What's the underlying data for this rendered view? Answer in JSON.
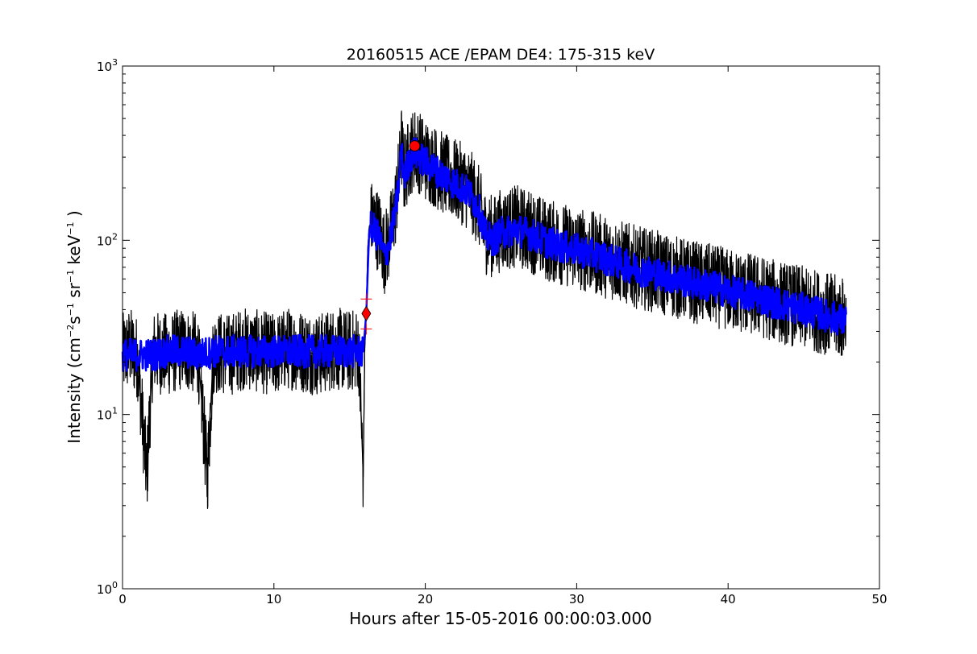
{
  "chart_data": {
    "type": "line",
    "title": "20160515 ACE /EPAM DE4: 175-315 keV",
    "xlabel": "Hours after 15-05-2016 00:00:03.000",
    "ylabel": {
      "prefix": "Intensity (cm",
      "exp1": "−2",
      "mid1": "s",
      "exp2": "−1",
      "mid2": " sr",
      "exp3": "−1",
      "mid3": " keV",
      "exp4": "−1",
      "suffix": " )"
    },
    "xlim": [
      0,
      50
    ],
    "ylim": [
      1,
      1000
    ],
    "yscale": "log",
    "grid": false,
    "xticks": [
      {
        "value": 0,
        "label": "0"
      },
      {
        "value": 10,
        "label": "10"
      },
      {
        "value": 20,
        "label": "20"
      },
      {
        "value": 30,
        "label": "30"
      },
      {
        "value": 40,
        "label": "40"
      },
      {
        "value": 50,
        "label": "50"
      }
    ],
    "yticks": [
      {
        "value": 1,
        "base": "10",
        "exp": "0"
      },
      {
        "value": 10,
        "base": "10",
        "exp": "1"
      },
      {
        "value": 100,
        "base": "10",
        "exp": "2"
      },
      {
        "value": 1000,
        "base": "10",
        "exp": "3"
      }
    ],
    "series": [
      {
        "color": "#000000",
        "points": [
          [
            0.0,
            22
          ],
          [
            0.5,
            24
          ],
          [
            1.0,
            21
          ],
          [
            1.6,
            4.4
          ],
          [
            2.0,
            23
          ],
          [
            3.0,
            22
          ],
          [
            4.0,
            24
          ],
          [
            5.0,
            22
          ],
          [
            5.6,
            4.4
          ],
          [
            6.0,
            23
          ],
          [
            7.0,
            22
          ],
          [
            8.0,
            24
          ],
          [
            9.0,
            23
          ],
          [
            10.0,
            22
          ],
          [
            11.0,
            24
          ],
          [
            12.0,
            23
          ],
          [
            13.0,
            22
          ],
          [
            14.0,
            24
          ],
          [
            15.0,
            23
          ],
          [
            15.6,
            24
          ],
          [
            15.9,
            4.4
          ],
          [
            16.0,
            24
          ],
          [
            16.1,
            38
          ],
          [
            16.2,
            90
          ],
          [
            16.3,
            120
          ],
          [
            16.5,
            130
          ],
          [
            17.0,
            110
          ],
          [
            17.3,
            85
          ],
          [
            17.6,
            100
          ],
          [
            18.0,
            150
          ],
          [
            18.3,
            250
          ],
          [
            18.4,
            370
          ],
          [
            18.6,
            240
          ],
          [
            19.0,
            310
          ],
          [
            19.3,
            340
          ],
          [
            19.6,
            320
          ],
          [
            20.0,
            290
          ],
          [
            20.5,
            270
          ],
          [
            21.0,
            250
          ],
          [
            21.5,
            230
          ],
          [
            22.0,
            220
          ],
          [
            22.5,
            210
          ],
          [
            23.0,
            190
          ],
          [
            23.5,
            160
          ],
          [
            24.0,
            110
          ],
          [
            24.5,
            105
          ],
          [
            25.0,
            115
          ],
          [
            26.0,
            120
          ],
          [
            27.0,
            112
          ],
          [
            28.0,
            100
          ],
          [
            29.0,
            95
          ],
          [
            30.0,
            90
          ],
          [
            31.0,
            85
          ],
          [
            32.0,
            80
          ],
          [
            33.0,
            75
          ],
          [
            34.0,
            70
          ],
          [
            35.0,
            67
          ],
          [
            36.0,
            63
          ],
          [
            37.0,
            60
          ],
          [
            38.0,
            57
          ],
          [
            39.0,
            55
          ],
          [
            40.0,
            52
          ],
          [
            41.0,
            50
          ],
          [
            42.0,
            48
          ],
          [
            43.0,
            45
          ],
          [
            44.0,
            43
          ],
          [
            45.0,
            41
          ],
          [
            46.0,
            39
          ],
          [
            47.0,
            37
          ],
          [
            47.8,
            35
          ]
        ]
      },
      {
        "color": "#0000ff",
        "points": [
          [
            0.0,
            22
          ],
          [
            1.0,
            22
          ],
          [
            2.0,
            22
          ],
          [
            3.0,
            23
          ],
          [
            4.0,
            23
          ],
          [
            5.0,
            22
          ],
          [
            6.0,
            23
          ],
          [
            7.0,
            23
          ],
          [
            8.0,
            23
          ],
          [
            9.0,
            23
          ],
          [
            10.0,
            23
          ],
          [
            11.0,
            23
          ],
          [
            12.0,
            23
          ],
          [
            13.0,
            23
          ],
          [
            14.0,
            23
          ],
          [
            15.0,
            23
          ],
          [
            15.9,
            23
          ],
          [
            16.1,
            38
          ],
          [
            16.3,
            115
          ],
          [
            16.5,
            120
          ],
          [
            17.0,
            100
          ],
          [
            17.3,
            80
          ],
          [
            17.6,
            95
          ],
          [
            18.0,
            140
          ],
          [
            18.3,
            230
          ],
          [
            18.4,
            340
          ],
          [
            18.6,
            230
          ],
          [
            19.0,
            300
          ],
          [
            19.3,
            320
          ],
          [
            19.6,
            300
          ],
          [
            20.0,
            280
          ],
          [
            20.5,
            260
          ],
          [
            21.0,
            240
          ],
          [
            21.5,
            225
          ],
          [
            22.0,
            210
          ],
          [
            22.5,
            200
          ],
          [
            23.0,
            180
          ],
          [
            23.5,
            155
          ],
          [
            24.0,
            105
          ],
          [
            24.5,
            100
          ],
          [
            25.0,
            110
          ],
          [
            26.0,
            115
          ],
          [
            27.0,
            108
          ],
          [
            28.0,
            98
          ],
          [
            29.0,
            92
          ],
          [
            30.0,
            88
          ],
          [
            31.0,
            83
          ],
          [
            32.0,
            78
          ],
          [
            33.0,
            73
          ],
          [
            34.0,
            68
          ],
          [
            35.0,
            65
          ],
          [
            36.0,
            62
          ],
          [
            37.0,
            59
          ],
          [
            38.0,
            56
          ],
          [
            39.0,
            54
          ],
          [
            40.0,
            51
          ],
          [
            41.0,
            49
          ],
          [
            42.0,
            47
          ],
          [
            43.0,
            44
          ],
          [
            44.0,
            42
          ],
          [
            45.0,
            40
          ],
          [
            46.0,
            38
          ],
          [
            47.0,
            36
          ],
          [
            47.8,
            34
          ]
        ]
      }
    ],
    "markers": [
      {
        "kind": "diamond",
        "color": "#ff0000",
        "x": 16.1,
        "y": 38
      },
      {
        "kind": "plus",
        "color": "#ff0000",
        "x": 16.1,
        "y": 46
      },
      {
        "kind": "plus",
        "color": "#ff0000",
        "x": 16.1,
        "y": 31
      },
      {
        "kind": "circle",
        "color": "#ff0000",
        "x": 19.3,
        "y": 348
      }
    ]
  }
}
